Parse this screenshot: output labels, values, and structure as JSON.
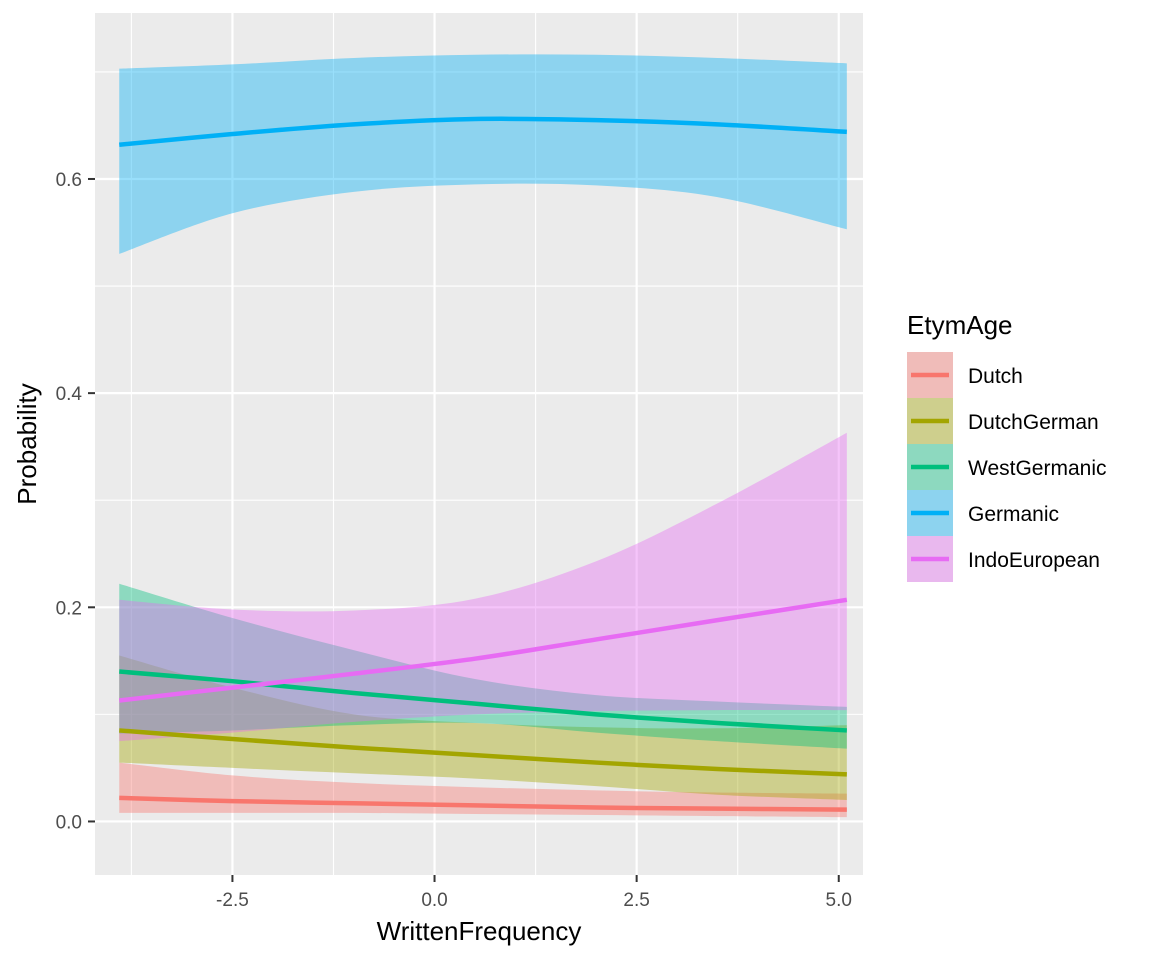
{
  "chart_data": {
    "type": "line",
    "xlabel": "WrittenFrequency",
    "ylabel": "Probability",
    "xlim": [
      -4.2,
      5.3
    ],
    "ylim": [
      -0.05,
      0.755
    ],
    "x_ticks": [
      -2.5,
      0.0,
      2.5,
      5.0
    ],
    "x_tick_labels": [
      "-2.5",
      "0.0",
      "2.5",
      "5.0"
    ],
    "y_ticks": [
      0.0,
      0.2,
      0.4,
      0.6
    ],
    "y_tick_labels": [
      "0.0",
      "0.2",
      "0.4",
      "0.6"
    ],
    "grid": true,
    "legend": {
      "title": "EtymAge",
      "position": "right"
    },
    "x": [
      -3.9,
      -2.5,
      -1.0,
      0.5,
      2.0,
      3.5,
      5.1
    ],
    "series": [
      {
        "name": "Dutch",
        "color": "#F8766D",
        "values": [
          0.022,
          0.019,
          0.017,
          0.015,
          0.013,
          0.012,
          0.011
        ],
        "lower": [
          0.008,
          0.008,
          0.008,
          0.007,
          0.006,
          0.005,
          0.004
        ],
        "upper": [
          0.055,
          0.043,
          0.036,
          0.032,
          0.029,
          0.027,
          0.026
        ]
      },
      {
        "name": "DutchGerman",
        "color": "#A3A500",
        "values": [
          0.085,
          0.077,
          0.069,
          0.062,
          0.055,
          0.049,
          0.044
        ],
        "lower": [
          0.055,
          0.05,
          0.045,
          0.04,
          0.033,
          0.025,
          0.02
        ],
        "upper": [
          0.155,
          0.125,
          0.1,
          0.092,
          0.088,
          0.087,
          0.09
        ]
      },
      {
        "name": "WestGermanic",
        "color": "#00BF7D",
        "values": [
          0.14,
          0.131,
          0.12,
          0.11,
          0.1,
          0.092,
          0.085
        ],
        "lower": [
          0.082,
          0.085,
          0.09,
          0.092,
          0.083,
          0.075,
          0.068
        ],
        "upper": [
          0.222,
          0.19,
          0.16,
          0.133,
          0.118,
          0.112,
          0.107
        ]
      },
      {
        "name": "Germanic",
        "color": "#00B0F6",
        "values": [
          0.632,
          0.642,
          0.651,
          0.656,
          0.655,
          0.651,
          0.644
        ],
        "lower": [
          0.53,
          0.568,
          0.588,
          0.595,
          0.594,
          0.583,
          0.553
        ],
        "upper": [
          0.703,
          0.707,
          0.713,
          0.716,
          0.716,
          0.713,
          0.708
        ]
      },
      {
        "name": "IndoEuropean",
        "color": "#E76BF3",
        "values": [
          0.113,
          0.125,
          0.138,
          0.152,
          0.17,
          0.188,
          0.207
        ],
        "lower": [
          0.075,
          0.083,
          0.093,
          0.1,
          0.103,
          0.104,
          0.104
        ],
        "upper": [
          0.207,
          0.198,
          0.197,
          0.208,
          0.243,
          0.297,
          0.363
        ]
      }
    ]
  }
}
